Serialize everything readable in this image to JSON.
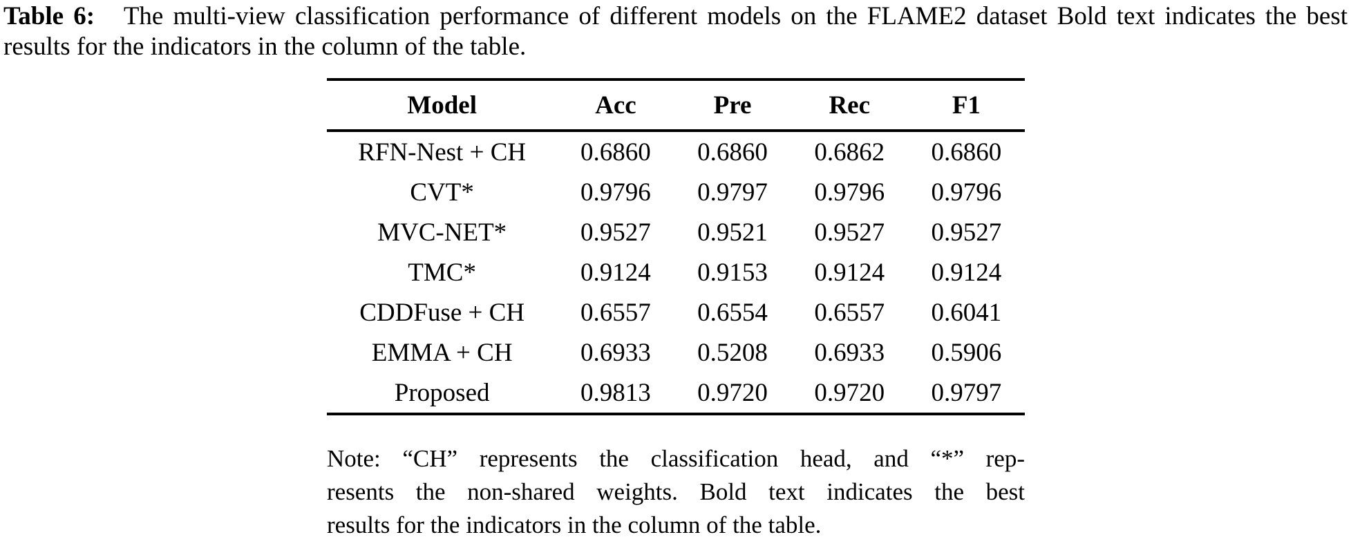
{
  "caption": {
    "label": "Table 6:",
    "text": "The multi-view classification performance of different models on the FLAME2 dataset Bold text indicates the best results for the indicators in the column of the table."
  },
  "table": {
    "columns": [
      "Model",
      "Acc",
      "Pre",
      "Rec",
      "F1"
    ],
    "rows": [
      {
        "model": "RFN-Nest + CH",
        "cells": [
          {
            "v": "0.6860",
            "b": false
          },
          {
            "v": "0.6860",
            "b": false
          },
          {
            "v": "0.6862",
            "b": false
          },
          {
            "v": "0.6860",
            "b": false
          }
        ]
      },
      {
        "model": "CVT*",
        "cells": [
          {
            "v": "0.9796",
            "b": false
          },
          {
            "v": "0.9797",
            "b": true
          },
          {
            "v": "0.9796",
            "b": true
          },
          {
            "v": "0.9796",
            "b": false
          }
        ]
      },
      {
        "model": "MVC-NET*",
        "cells": [
          {
            "v": "0.9527",
            "b": false
          },
          {
            "v": "0.9521",
            "b": false
          },
          {
            "v": "0.9527",
            "b": false
          },
          {
            "v": "0.9527",
            "b": false
          }
        ]
      },
      {
        "model": "TMC*",
        "cells": [
          {
            "v": "0.9124",
            "b": false
          },
          {
            "v": "0.9153",
            "b": false
          },
          {
            "v": "0.9124",
            "b": false
          },
          {
            "v": "0.9124",
            "b": false
          }
        ]
      },
      {
        "model": "CDDFuse + CH",
        "cells": [
          {
            "v": "0.6557",
            "b": false
          },
          {
            "v": "0.6554",
            "b": false
          },
          {
            "v": "0.6557",
            "b": false
          },
          {
            "v": "0.6041",
            "b": false
          }
        ]
      },
      {
        "model": "EMMA + CH",
        "cells": [
          {
            "v": "0.6933",
            "b": false
          },
          {
            "v": "0.5208",
            "b": false
          },
          {
            "v": "0.6933",
            "b": false
          },
          {
            "v": "0.5906",
            "b": false
          }
        ]
      },
      {
        "model": "Proposed",
        "cells": [
          {
            "v": "0.9813",
            "b": true
          },
          {
            "v": "0.9720",
            "b": false
          },
          {
            "v": "0.9720",
            "b": false
          },
          {
            "v": "0.9797",
            "b": true
          }
        ]
      }
    ]
  },
  "note": {
    "lines": [
      "Note: “CH” represents the classification head, and “*” rep-",
      "resents the non-shared weights. Bold text indicates the best",
      "results for the indicators in the column of the table."
    ]
  },
  "colors": {
    "text": "#000000",
    "background": "#ffffff",
    "rule": "#000000"
  }
}
